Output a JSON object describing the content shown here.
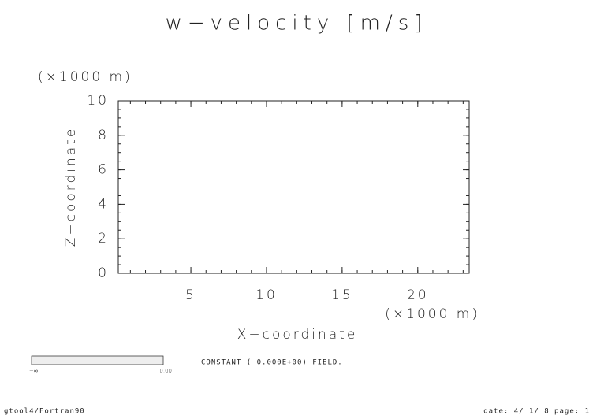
{
  "chart_data": {
    "type": "contour",
    "title": "w−velocity [m/s]",
    "x_label": "X−coordinate",
    "y_label": "Z−coordinate",
    "x_unit": "(×1000 m)",
    "y_unit": "(×1000 m)",
    "xlim": [
      0.2,
      23.4
    ],
    "xticks": [
      5,
      10,
      15,
      20
    ],
    "ylim": [
      0,
      10
    ],
    "yticks": [
      0,
      2,
      4,
      6,
      8,
      10
    ],
    "message": "CONSTANT ( 0.000E+00) FIELD.",
    "colorbar": {
      "labels": [
        "−∞",
        "0.00"
      ],
      "color": "#eeeeee"
    },
    "footer_left": "gtool4/Fortran90",
    "footer_right": "date: 4/ 1/ 8 page: 1"
  }
}
